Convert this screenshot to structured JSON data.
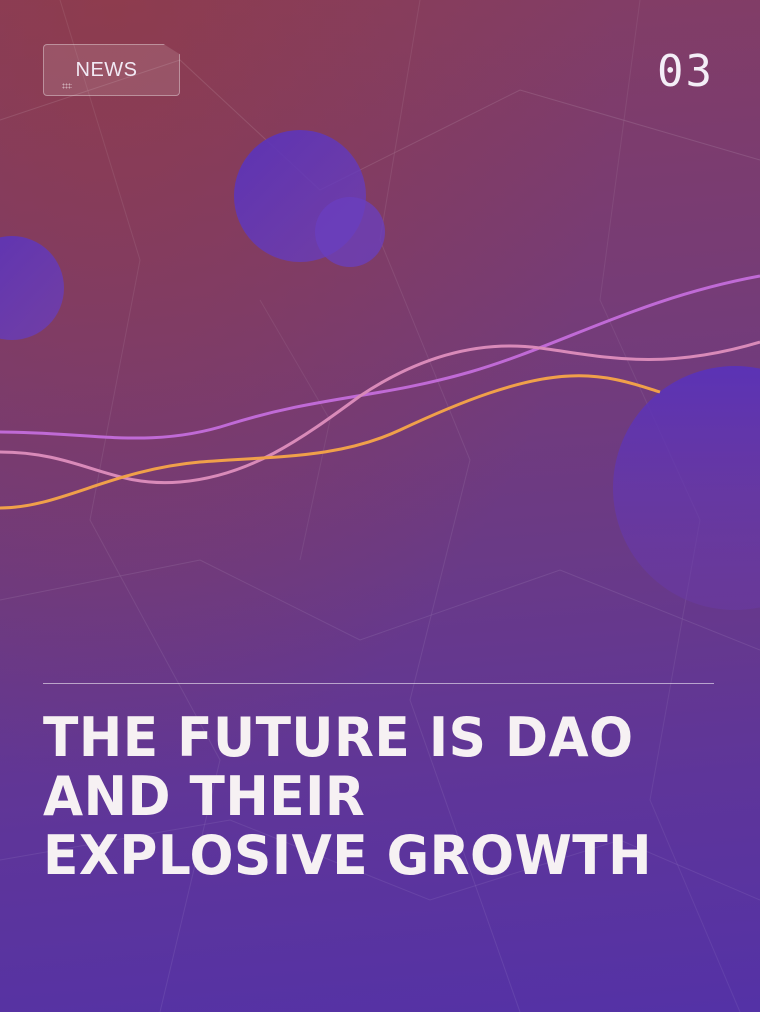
{
  "badge": {
    "label": "NEWS"
  },
  "page_number": "03",
  "headline": {
    "lines": [
      "THE FUTURE IS DAO",
      "AND THEIR",
      "EXPLOSIVE GROWTH"
    ]
  },
  "colors": {
    "circle": "#5a32b8",
    "wave_violet": "#c06ad6",
    "wave_pink": "#d98ab9",
    "wave_orange": "#f0a04a"
  }
}
